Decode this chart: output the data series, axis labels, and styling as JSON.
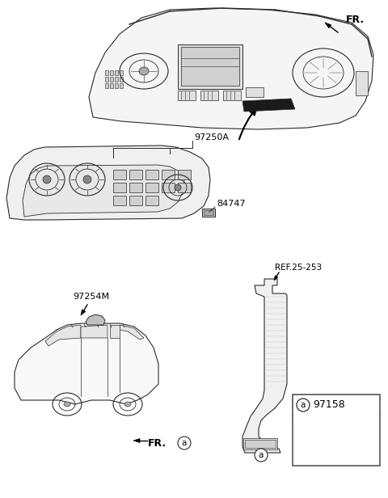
{
  "bg_color": "#ffffff",
  "fig_width": 4.8,
  "fig_height": 6.16,
  "dpi": 100,
  "lc": "#2a2a2a",
  "labels": {
    "FR_top": "FR.",
    "part_97250A": "97250A",
    "part_84747": "84747",
    "part_97254M": "97254M",
    "part_97158": "97158",
    "ref_25_253": "REF.25-253",
    "FR_bottom": "FR.",
    "circle_a": "a"
  }
}
